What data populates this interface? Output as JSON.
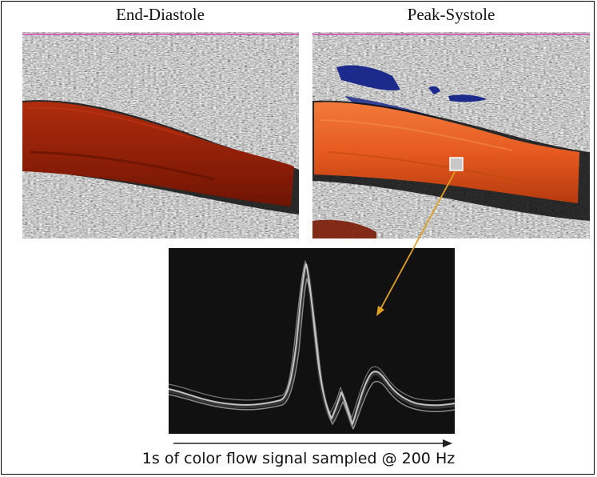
{
  "figure": {
    "left_title": "End-Diastole",
    "right_title": "Peak-Systole",
    "caption": "1s of color flow signal sampled @ 200 Hz"
  },
  "colors": {
    "frame_border": "#000000",
    "title_rule": "#d04ab0",
    "diastole_flow": "#a0240a",
    "systole_flow": "#e8561e",
    "reverse_flow": "#1c2a8c",
    "pointer_arrow": "#e0a020",
    "waveform_bg": "#111111",
    "waveform_trace": "#e6e6e6",
    "time_arrow": "#222222"
  },
  "icons": {
    "sample_marker": "sample-volume-square-icon",
    "pointer": "arrow-icon",
    "time_axis": "right-arrow-icon"
  }
}
